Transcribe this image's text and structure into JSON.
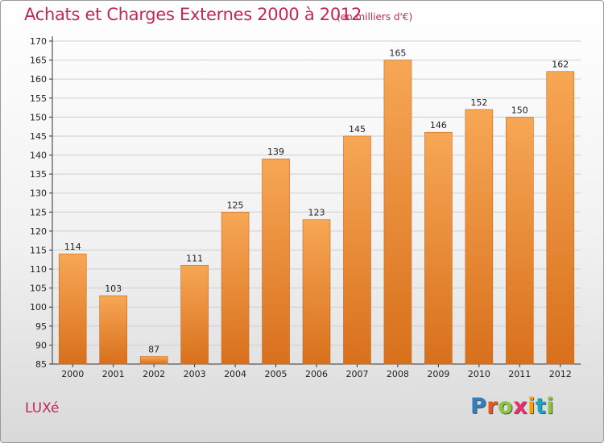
{
  "header": {
    "title": "Achats et Charges Externes 2000 à 2012",
    "unit": "(en milliers d'€)"
  },
  "footer": {
    "commune": "LUXé",
    "logo_letters": [
      "P",
      "r",
      "o",
      "x",
      "i",
      "t",
      "i"
    ],
    "logo_colors": [
      "#2f7fc1",
      "#e8571c",
      "#8cc63f",
      "#ec2f6e",
      "#f2a400",
      "#1aa6c5",
      "#8cc63f"
    ]
  },
  "colors": {
    "bar_top": "#f7a755",
    "bar_bottom": "#d8701c",
    "title": "#c3275a",
    "grid": "#cfcfcf"
  },
  "chart_data": {
    "type": "bar",
    "title": "Achats et Charges Externes 2000 à 2012",
    "subtitle": "(en milliers d'€)",
    "categories": [
      "2000",
      "2001",
      "2002",
      "2003",
      "2004",
      "2005",
      "2006",
      "2007",
      "2008",
      "2009",
      "2010",
      "2011",
      "2012"
    ],
    "values": [
      114,
      103,
      87,
      111,
      125,
      139,
      123,
      145,
      165,
      146,
      152,
      150,
      162
    ],
    "ylim": [
      85,
      170
    ],
    "yticks": [
      85,
      90,
      95,
      100,
      105,
      110,
      115,
      120,
      125,
      130,
      135,
      140,
      145,
      150,
      155,
      160,
      165,
      170
    ],
    "grid": true,
    "legend": "none"
  }
}
